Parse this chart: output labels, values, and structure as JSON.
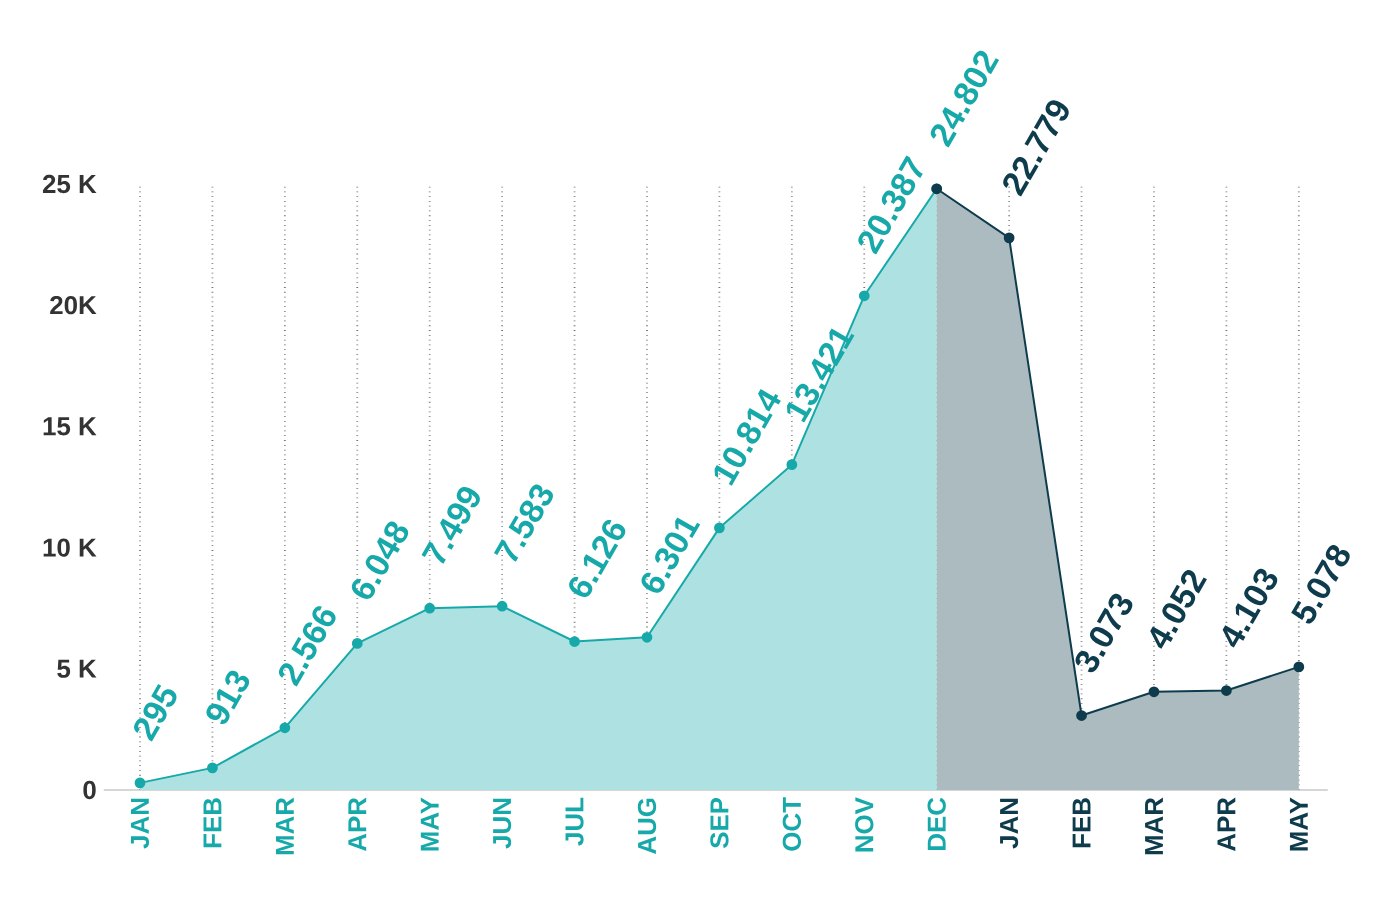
{
  "chart_data": {
    "type": "area",
    "categories": [
      "JAN",
      "FEB",
      "MAR",
      "APR",
      "MAY",
      "JUN",
      "JUL",
      "AUG",
      "SEP",
      "OCT",
      "NOV",
      "DEC",
      "JAN",
      "FEB",
      "MAR",
      "APR",
      "MAY"
    ],
    "series": [
      {
        "color": "#17a9a9",
        "values": [
          295,
          913,
          2566,
          6048,
          7499,
          7583,
          6126,
          6301,
          10814,
          13421,
          20387,
          24802,
          null,
          null,
          null,
          null,
          null
        ],
        "value_labels": [
          "295",
          "913",
          "2.566",
          "6.048",
          "7.499",
          "7.583",
          "6.126",
          "6.301",
          "10.814",
          "13.421",
          "20.387",
          "24.802",
          null,
          null,
          null,
          null,
          null
        ]
      },
      {
        "color": "#0e3c4c",
        "values": [
          null,
          null,
          null,
          null,
          null,
          null,
          null,
          null,
          null,
          null,
          null,
          24802,
          22779,
          3073,
          4052,
          4103,
          5078
        ],
        "value_labels": [
          null,
          null,
          null,
          null,
          null,
          null,
          null,
          null,
          null,
          null,
          null,
          null,
          "22.779",
          "3.073",
          "4.052",
          "4.103",
          "5.078"
        ]
      }
    ],
    "ylim": [
      0,
      25000
    ],
    "yticks": [
      0,
      {
        "value": 5000,
        "label": "5 K"
      },
      {
        "value": 10000,
        "label": "10 K"
      },
      {
        "value": 15000,
        "label": "15 K"
      },
      {
        "value": 20000,
        "label": "20K"
      },
      {
        "value": 25000,
        "label": "25 K"
      }
    ],
    "grid": "x",
    "marker": "circle"
  }
}
